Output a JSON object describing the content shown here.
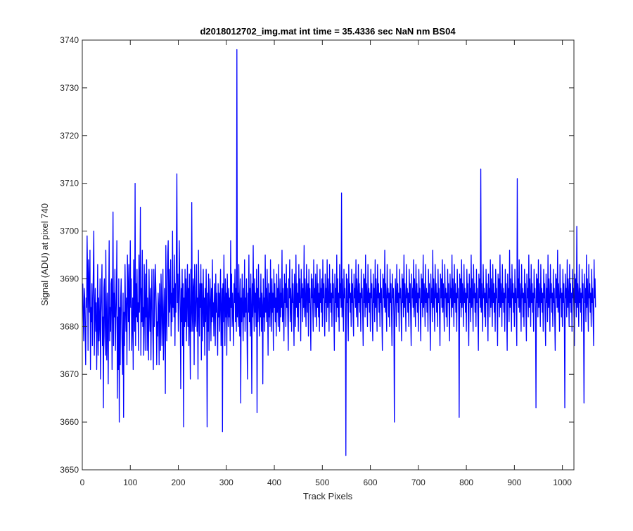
{
  "chart_data": {
    "type": "line",
    "title": "d2018012702_img.mat int time = 35.4336 sec  NaN nm BS04",
    "xlabel": "Track Pixels",
    "ylabel": "Signal (ADU) at pixel 740",
    "xlim": [
      0,
      1024
    ],
    "ylim": [
      3650,
      3740
    ],
    "xticks": [
      0,
      100,
      200,
      300,
      400,
      500,
      600,
      700,
      800,
      900,
      1000
    ],
    "yticks": [
      3650,
      3660,
      3670,
      3680,
      3690,
      3700,
      3710,
      3720,
      3730,
      3740
    ],
    "grid": false,
    "legend": "none",
    "line_color": "#0000ff",
    "series": [
      {
        "x_start": 1,
        "x_step": 1,
        "values": [
          3689,
          3682,
          3677,
          3688,
          3686,
          3679,
          3672,
          3686,
          3684,
          3699,
          3691,
          3675,
          3694,
          3688,
          3683,
          3696,
          3671,
          3684,
          3681,
          3689,
          3676,
          3685,
          3692,
          3700,
          3674,
          3683,
          3688,
          3679,
          3685,
          3671,
          3681,
          3693,
          3674,
          3686,
          3677,
          3681,
          3690,
          3669,
          3683,
          3687,
          3693,
          3676,
          3682,
          3663,
          3688,
          3690,
          3678,
          3674,
          3696,
          3682,
          3673,
          3687,
          3680,
          3668,
          3686,
          3698,
          3677,
          3684,
          3679,
          3689,
          3690,
          3671,
          3685,
          3704,
          3676,
          3687,
          3682,
          3692,
          3675,
          3682,
          3687,
          3698,
          3665,
          3682,
          3671,
          3690,
          3660,
          3684,
          3672,
          3686,
          3690,
          3681,
          3675,
          3670,
          3687,
          3661,
          3683,
          3676,
          3693,
          3684,
          3679,
          3686,
          3672,
          3695,
          3688,
          3681,
          3693,
          3675,
          3685,
          3698,
          3684,
          3690,
          3675,
          3681,
          3686,
          3671,
          3694,
          3685,
          3679,
          3710,
          3676,
          3689,
          3682,
          3692,
          3681,
          3685,
          3675,
          3695,
          3683,
          3689,
          3705,
          3674,
          3688,
          3681,
          3696,
          3680,
          3684,
          3674,
          3693,
          3685,
          3675,
          3691,
          3682,
          3694,
          3675,
          3686,
          3681,
          3673,
          3692,
          3684,
          3679,
          3688,
          3673,
          3684,
          3692,
          3683,
          3678,
          3671,
          3692,
          3680,
          3684,
          3693,
          3689,
          3684,
          3672,
          3681,
          3678,
          3687,
          3684,
          3672,
          3689,
          3682,
          3675,
          3691,
          3686,
          3676,
          3683,
          3692,
          3673,
          3679,
          3688,
          3682,
          3666,
          3697,
          3684,
          3677,
          3689,
          3695,
          3698,
          3680,
          3692,
          3683,
          3686,
          3694,
          3678,
          3687,
          3681,
          3700,
          3684,
          3688,
          3682,
          3695,
          3676,
          3689,
          3683,
          3697,
          3712,
          3685,
          3691,
          3679,
          3684,
          3698,
          3690,
          3683,
          3667,
          3688,
          3681,
          3692,
          3676,
          3689,
          3659,
          3686,
          3680,
          3692,
          3681,
          3690,
          3677,
          3686,
          3693,
          3680,
          3688,
          3676,
          3691,
          3682,
          3669,
          3692,
          3679,
          3706,
          3683,
          3679,
          3690,
          3688,
          3672,
          3693,
          3682,
          3680,
          3688,
          3693,
          3679,
          3686,
          3669,
          3696,
          3685,
          3678,
          3689,
          3684,
          3693,
          3673,
          3689,
          3677,
          3684,
          3692,
          3680,
          3686,
          3674,
          3688,
          3681,
          3692,
          3684,
          3659,
          3687,
          3679,
          3691,
          3675,
          3683,
          3690,
          3685,
          3677,
          3688,
          3681,
          3694,
          3682,
          3685,
          3678,
          3689,
          3684,
          3676,
          3691,
          3683,
          3687,
          3680,
          3674,
          3689,
          3682,
          3687,
          3679,
          3686,
          3692,
          3676,
          3683,
          3688,
          3658,
          3689,
          3681,
          3695,
          3684,
          3676,
          3690,
          3682,
          3687,
          3674,
          3691,
          3685,
          3680,
          3688,
          3682,
          3686,
          3677,
          3698,
          3684,
          3691,
          3680,
          3687,
          3683,
          3676,
          3689,
          3685,
          3692,
          3681,
          3688,
          3679,
          3738,
          3682,
          3687,
          3680,
          3693,
          3684,
          3678,
          3690,
          3664,
          3686,
          3681,
          3691,
          3684,
          3677,
          3688,
          3682,
          3694,
          3679,
          3686,
          3683,
          3690,
          3680,
          3669,
          3687,
          3683,
          3695,
          3681,
          3688,
          3678,
          3691,
          3684,
          3666,
          3689,
          3682,
          3697,
          3685,
          3679,
          3690,
          3683,
          3687,
          3680,
          3692,
          3662,
          3688,
          3681,
          3693,
          3685,
          3678,
          3686,
          3682,
          3691,
          3679,
          3687,
          3684,
          3668,
          3690,
          3682,
          3686,
          3679,
          3695,
          3683,
          3688,
          3681,
          3692,
          3684,
          3674,
          3689,
          3682,
          3687,
          3680,
          3694,
          3685,
          3679,
          3690,
          3683,
          3687,
          3675,
          3692,
          3684,
          3689,
          3681,
          3686,
          3678,
          3691,
          3683,
          3688,
          3680,
          3693,
          3685,
          3679,
          3690,
          3682,
          3687,
          3684,
          3696,
          3681,
          3688,
          3683,
          3677,
          3691,
          3685,
          3689,
          3680,
          3693,
          3684,
          3688,
          3682,
          3675,
          3690,
          3686,
          3694,
          3681,
          3688,
          3684,
          3679,
          3692,
          3685,
          3689,
          3683,
          3676,
          3691,
          3686,
          3680,
          3695,
          3684,
          3689,
          3682,
          3687,
          3679,
          3693,
          3685,
          3690,
          3684,
          3677,
          3692,
          3686,
          3689,
          3681,
          3688,
          3684,
          3697,
          3682,
          3690,
          3685,
          3680,
          3693,
          3687,
          3683,
          3689,
          3678,
          3692,
          3685,
          3688,
          3682,
          3675,
          3691,
          3686,
          3690,
          3684,
          3679,
          3694,
          3685,
          3688,
          3682,
          3691,
          3686,
          3680,
          3693,
          3684,
          3689,
          3682,
          3687,
          3679,
          3692,
          3685,
          3688,
          3683,
          3690,
          3680,
          3694,
          3686,
          3689,
          3682,
          3678,
          3691,
          3685,
          3688,
          3681,
          3694,
          3684,
          3690,
          3686,
          3679,
          3693,
          3685,
          3689,
          3683,
          3687,
          3680,
          3692,
          3686,
          3689,
          3682,
          3675,
          3691,
          3685,
          3688,
          3681,
          3695,
          3684,
          3690,
          3682,
          3687,
          3679,
          3693,
          3686,
          3689,
          3684,
          3708,
          3682,
          3690,
          3685,
          3679,
          3692,
          3686,
          3688,
          3683,
          3653,
          3691,
          3685,
          3690,
          3682,
          3677,
          3693,
          3686,
          3689,
          3683,
          3687,
          3680,
          3692,
          3685,
          3689,
          3682,
          3678,
          3691,
          3686,
          3688,
          3684,
          3694,
          3682,
          3690,
          3686,
          3680,
          3693,
          3685,
          3689,
          3683,
          3687,
          3679,
          3692,
          3686,
          3688,
          3683,
          3676,
          3691,
          3685,
          3690,
          3682,
          3695,
          3684,
          3689,
          3686,
          3680,
          3693,
          3685,
          3688,
          3683,
          3687,
          3679,
          3692,
          3686,
          3689,
          3682,
          3677,
          3691,
          3685,
          3688,
          3681,
          3694,
          3684,
          3690,
          3685,
          3679,
          3693,
          3686,
          3689,
          3683,
          3687,
          3680,
          3692,
          3685,
          3688,
          3682,
          3675,
          3691,
          3686,
          3690,
          3684,
          3696,
          3683,
          3689,
          3685,
          3679,
          3693,
          3686,
          3688,
          3682,
          3687,
          3680,
          3692,
          3685,
          3689,
          3683,
          3676,
          3691,
          3686,
          3688,
          3682,
          3660,
          3684,
          3690,
          3686,
          3680,
          3693,
          3685,
          3689,
          3683,
          3687,
          3679,
          3692,
          3686,
          3688,
          3683,
          3677,
          3691,
          3685,
          3690,
          3682,
          3695,
          3684,
          3689,
          3685,
          3679,
          3693,
          3686,
          3688,
          3683,
          3687,
          3680,
          3692,
          3685,
          3689,
          3682,
          3676,
          3691,
          3686,
          3688,
          3684,
          3694,
          3682,
          3690,
          3686,
          3680,
          3693,
          3685,
          3689,
          3683,
          3687,
          3679,
          3692,
          3686,
          3688,
          3683,
          3677,
          3691,
          3685,
          3690,
          3682,
          3695,
          3684,
          3689,
          3686,
          3680,
          3693,
          3685,
          3688,
          3683,
          3687,
          3679,
          3692,
          3686,
          3689,
          3682,
          3675,
          3691,
          3685,
          3688,
          3681,
          3696,
          3684,
          3690,
          3685,
          3679,
          3693,
          3686,
          3689,
          3683,
          3687,
          3680,
          3692,
          3685,
          3688,
          3682,
          3676,
          3691,
          3686,
          3690,
          3684,
          3694,
          3683,
          3689,
          3685,
          3679,
          3693,
          3686,
          3688,
          3682,
          3687,
          3680,
          3692,
          3685,
          3689,
          3683,
          3677,
          3691,
          3686,
          3688,
          3682,
          3695,
          3684,
          3690,
          3686,
          3680,
          3693,
          3685,
          3689,
          3683,
          3687,
          3679,
          3692,
          3686,
          3688,
          3683,
          3661,
          3691,
          3685,
          3690,
          3682,
          3694,
          3684,
          3689,
          3686,
          3680,
          3693,
          3685,
          3688,
          3683,
          3687,
          3679,
          3692,
          3686,
          3689,
          3682,
          3676,
          3691,
          3685,
          3688,
          3681,
          3695,
          3684,
          3690,
          3685,
          3679,
          3693,
          3686,
          3689,
          3683,
          3687,
          3680,
          3692,
          3685,
          3688,
          3682,
          3675,
          3691,
          3686,
          3690,
          3684,
          3713,
          3683,
          3689,
          3685,
          3679,
          3693,
          3686,
          3688,
          3682,
          3687,
          3680,
          3692,
          3685,
          3689,
          3683,
          3677,
          3691,
          3686,
          3688,
          3682,
          3694,
          3684,
          3690,
          3686,
          3680,
          3693,
          3685,
          3689,
          3683,
          3687,
          3679,
          3692,
          3686,
          3688,
          3683,
          3676,
          3691,
          3685,
          3690,
          3682,
          3695,
          3684,
          3689,
          3686,
          3680,
          3693,
          3685,
          3688,
          3683,
          3687,
          3679,
          3692,
          3686,
          3689,
          3682,
          3675,
          3691,
          3685,
          3688,
          3681,
          3696,
          3684,
          3690,
          3685,
          3679,
          3693,
          3686,
          3689,
          3683,
          3687,
          3680,
          3692,
          3685,
          3688,
          3682,
          3676,
          3711,
          3686,
          3690,
          3684,
          3694,
          3683,
          3689,
          3685,
          3679,
          3693,
          3686,
          3688,
          3682,
          3687,
          3680,
          3692,
          3685,
          3689,
          3683,
          3677,
          3691,
          3686,
          3688,
          3682,
          3695,
          3684,
          3690,
          3686,
          3680,
          3693,
          3685,
          3689,
          3683,
          3687,
          3679,
          3692,
          3686,
          3688,
          3683,
          3663,
          3691,
          3685,
          3690,
          3682,
          3694,
          3684,
          3689,
          3686,
          3680,
          3693,
          3685,
          3688,
          3683,
          3687,
          3679,
          3692,
          3686,
          3689,
          3682,
          3676,
          3691,
          3685,
          3688,
          3681,
          3695,
          3684,
          3690,
          3685,
          3679,
          3693,
          3686,
          3689,
          3683,
          3687,
          3680,
          3692,
          3685,
          3688,
          3682,
          3675,
          3691,
          3686,
          3690,
          3684,
          3696,
          3683,
          3689,
          3685,
          3679,
          3693,
          3686,
          3688,
          3682,
          3687,
          3680,
          3692,
          3685,
          3689,
          3683,
          3663,
          3691,
          3686,
          3688,
          3682,
          3694,
          3684,
          3690,
          3686,
          3680,
          3693,
          3685,
          3689,
          3683,
          3687,
          3679,
          3692,
          3686,
          3688,
          3683,
          3676,
          3691,
          3685,
          3690,
          3682,
          3701,
          3684,
          3689,
          3686,
          3680,
          3693,
          3685,
          3688,
          3683,
          3687,
          3679,
          3692,
          3686,
          3689,
          3682,
          3664,
          3691,
          3685,
          3688,
          3681,
          3695,
          3684,
          3690,
          3685,
          3679,
          3693,
          3686,
          3689,
          3683,
          3687,
          3680,
          3692,
          3685,
          3688,
          3682,
          3676,
          3694,
          3686,
          3690,
          3684
        ]
      }
    ]
  }
}
